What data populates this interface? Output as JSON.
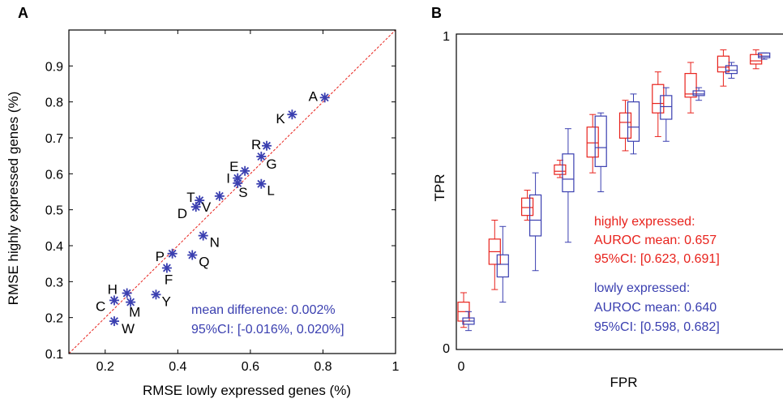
{
  "panels": {
    "a": {
      "label": "A"
    },
    "b": {
      "label": "B"
    }
  },
  "colors": {
    "axis": "#000000",
    "points": "#3a3fb0",
    "red": "#e8221c",
    "blue": "#3a3fb0",
    "identity_line": "#e8221c"
  },
  "chart_data": [
    {
      "type": "scatter",
      "panel": "A",
      "xlabel": "RMSE lowly expressed genes (%)",
      "ylabel": "RMSE highly expressed genes (%)",
      "xlim": [
        0.1,
        1.0
      ],
      "ylim": [
        0.1,
        1.0
      ],
      "xticks": [
        0.2,
        0.4,
        0.6,
        0.8,
        1.0
      ],
      "xtick_labels": [
        "0.2",
        "0.4",
        "0.6",
        "0.8",
        "1"
      ],
      "yticks": [
        0.1,
        0.2,
        0.3,
        0.4,
        0.5,
        0.6,
        0.7,
        0.8,
        0.9
      ],
      "ytick_labels": [
        "0.1",
        "0.2",
        "0.3",
        "0.4",
        "0.5",
        "0.6",
        "0.7",
        "0.8",
        "0.9"
      ],
      "identity_line": true,
      "grid": false,
      "points": [
        {
          "label": "A",
          "x": 0.805,
          "y": 0.812
        },
        {
          "label": "K",
          "x": 0.715,
          "y": 0.765
        },
        {
          "label": "R",
          "x": 0.645,
          "y": 0.678
        },
        {
          "label": "G",
          "x": 0.63,
          "y": 0.648
        },
        {
          "label": "E",
          "x": 0.585,
          "y": 0.608
        },
        {
          "label": "I",
          "x": 0.565,
          "y": 0.588
        },
        {
          "label": "S",
          "x": 0.565,
          "y": 0.574
        },
        {
          "label": "L",
          "x": 0.63,
          "y": 0.572
        },
        {
          "label": "T",
          "x": 0.46,
          "y": 0.526
        },
        {
          "label": "D",
          "x": 0.45,
          "y": 0.508
        },
        {
          "label": "V",
          "x": 0.515,
          "y": 0.538
        },
        {
          "label": "N",
          "x": 0.47,
          "y": 0.428
        },
        {
          "label": "P",
          "x": 0.385,
          "y": 0.378
        },
        {
          "label": "Q",
          "x": 0.44,
          "y": 0.374
        },
        {
          "label": "F",
          "x": 0.37,
          "y": 0.338
        },
        {
          "label": "H",
          "x": 0.26,
          "y": 0.268
        },
        {
          "label": "C",
          "x": 0.225,
          "y": 0.248
        },
        {
          "label": "M",
          "x": 0.27,
          "y": 0.243
        },
        {
          "label": "Y",
          "x": 0.34,
          "y": 0.264
        },
        {
          "label": "W",
          "x": 0.225,
          "y": 0.19
        }
      ],
      "annotation": {
        "line1": "mean difference: 0.002%",
        "line2": "95%CI: [-0.016%, 0.020%]"
      }
    },
    {
      "type": "box",
      "panel": "B",
      "xlabel": "FPR",
      "ylabel": "TPR",
      "xlim": [
        0,
        1
      ],
      "ylim": [
        0,
        1
      ],
      "xtick_labels": [
        "0"
      ],
      "ytick_labels": [
        "0",
        "1"
      ],
      "x_positions": [
        0.0,
        0.1,
        0.2,
        0.3,
        0.4,
        0.5,
        0.6,
        0.7,
        0.8,
        0.9,
        1.0
      ],
      "series": [
        {
          "name": "highly expressed",
          "color": "#e8221c",
          "boxes": [
            {
              "x": 0.0,
              "wlo": 0.07,
              "q1": 0.09,
              "med": 0.12,
              "q3": 0.15,
              "whi": 0.18
            },
            {
              "x": 0.1,
              "wlo": 0.19,
              "q1": 0.27,
              "med": 0.31,
              "q3": 0.35,
              "whi": 0.41
            },
            {
              "x": 0.2,
              "wlo": 0.41,
              "q1": 0.425,
              "med": 0.45,
              "q3": 0.48,
              "whi": 0.505
            },
            {
              "x": 0.3,
              "wlo": 0.545,
              "q1": 0.555,
              "med": 0.565,
              "q3": 0.585,
              "whi": 0.6
            },
            {
              "x": 0.4,
              "wlo": 0.56,
              "q1": 0.61,
              "med": 0.655,
              "q3": 0.705,
              "whi": 0.745
            },
            {
              "x": 0.5,
              "wlo": 0.63,
              "q1": 0.67,
              "med": 0.72,
              "q3": 0.75,
              "whi": 0.79
            },
            {
              "x": 0.6,
              "wlo": 0.675,
              "q1": 0.75,
              "med": 0.78,
              "q3": 0.84,
              "whi": 0.88
            },
            {
              "x": 0.7,
              "wlo": 0.75,
              "q1": 0.8,
              "med": 0.81,
              "q3": 0.875,
              "whi": 0.91
            },
            {
              "x": 0.8,
              "wlo": 0.835,
              "q1": 0.88,
              "med": 0.895,
              "q3": 0.93,
              "whi": 0.95
            },
            {
              "x": 0.9,
              "wlo": 0.89,
              "q1": 0.905,
              "med": 0.915,
              "q3": 0.935,
              "whi": 0.95
            }
          ],
          "legend": {
            "title": "highly expressed:",
            "auroc": "AUROC mean: 0.657",
            "ci": "95%CI: [0.623, 0.691]"
          }
        },
        {
          "name": "lowly expressed",
          "color": "#3a3fb0",
          "boxes": [
            {
              "x": 0.0,
              "wlo": 0.06,
              "q1": 0.08,
              "med": 0.09,
              "q3": 0.1,
              "whi": 0.12
            },
            {
              "x": 0.1,
              "wlo": 0.15,
              "q1": 0.23,
              "med": 0.27,
              "q3": 0.3,
              "whi": 0.39
            },
            {
              "x": 0.2,
              "wlo": 0.25,
              "q1": 0.36,
              "med": 0.41,
              "q3": 0.49,
              "whi": 0.56
            },
            {
              "x": 0.3,
              "wlo": 0.34,
              "q1": 0.5,
              "med": 0.54,
              "q3": 0.62,
              "whi": 0.7
            },
            {
              "x": 0.4,
              "wlo": 0.5,
              "q1": 0.58,
              "med": 0.64,
              "q3": 0.74,
              "whi": 0.75
            },
            {
              "x": 0.5,
              "wlo": 0.62,
              "q1": 0.66,
              "med": 0.705,
              "q3": 0.785,
              "whi": 0.81
            },
            {
              "x": 0.6,
              "wlo": 0.66,
              "q1": 0.73,
              "med": 0.77,
              "q3": 0.805,
              "whi": 0.83
            },
            {
              "x": 0.7,
              "wlo": 0.79,
              "q1": 0.805,
              "med": 0.81,
              "q3": 0.82,
              "whi": 0.83
            },
            {
              "x": 0.8,
              "wlo": 0.86,
              "q1": 0.875,
              "med": 0.885,
              "q3": 0.9,
              "whi": 0.91
            },
            {
              "x": 0.9,
              "wlo": 0.92,
              "q1": 0.925,
              "med": 0.93,
              "q3": 0.94,
              "whi": 0.94
            }
          ],
          "legend": {
            "title": "lowly expressed:",
            "auroc": "AUROC mean: 0.640",
            "ci": "95%CI: [0.598, 0.682]"
          }
        }
      ]
    }
  ]
}
